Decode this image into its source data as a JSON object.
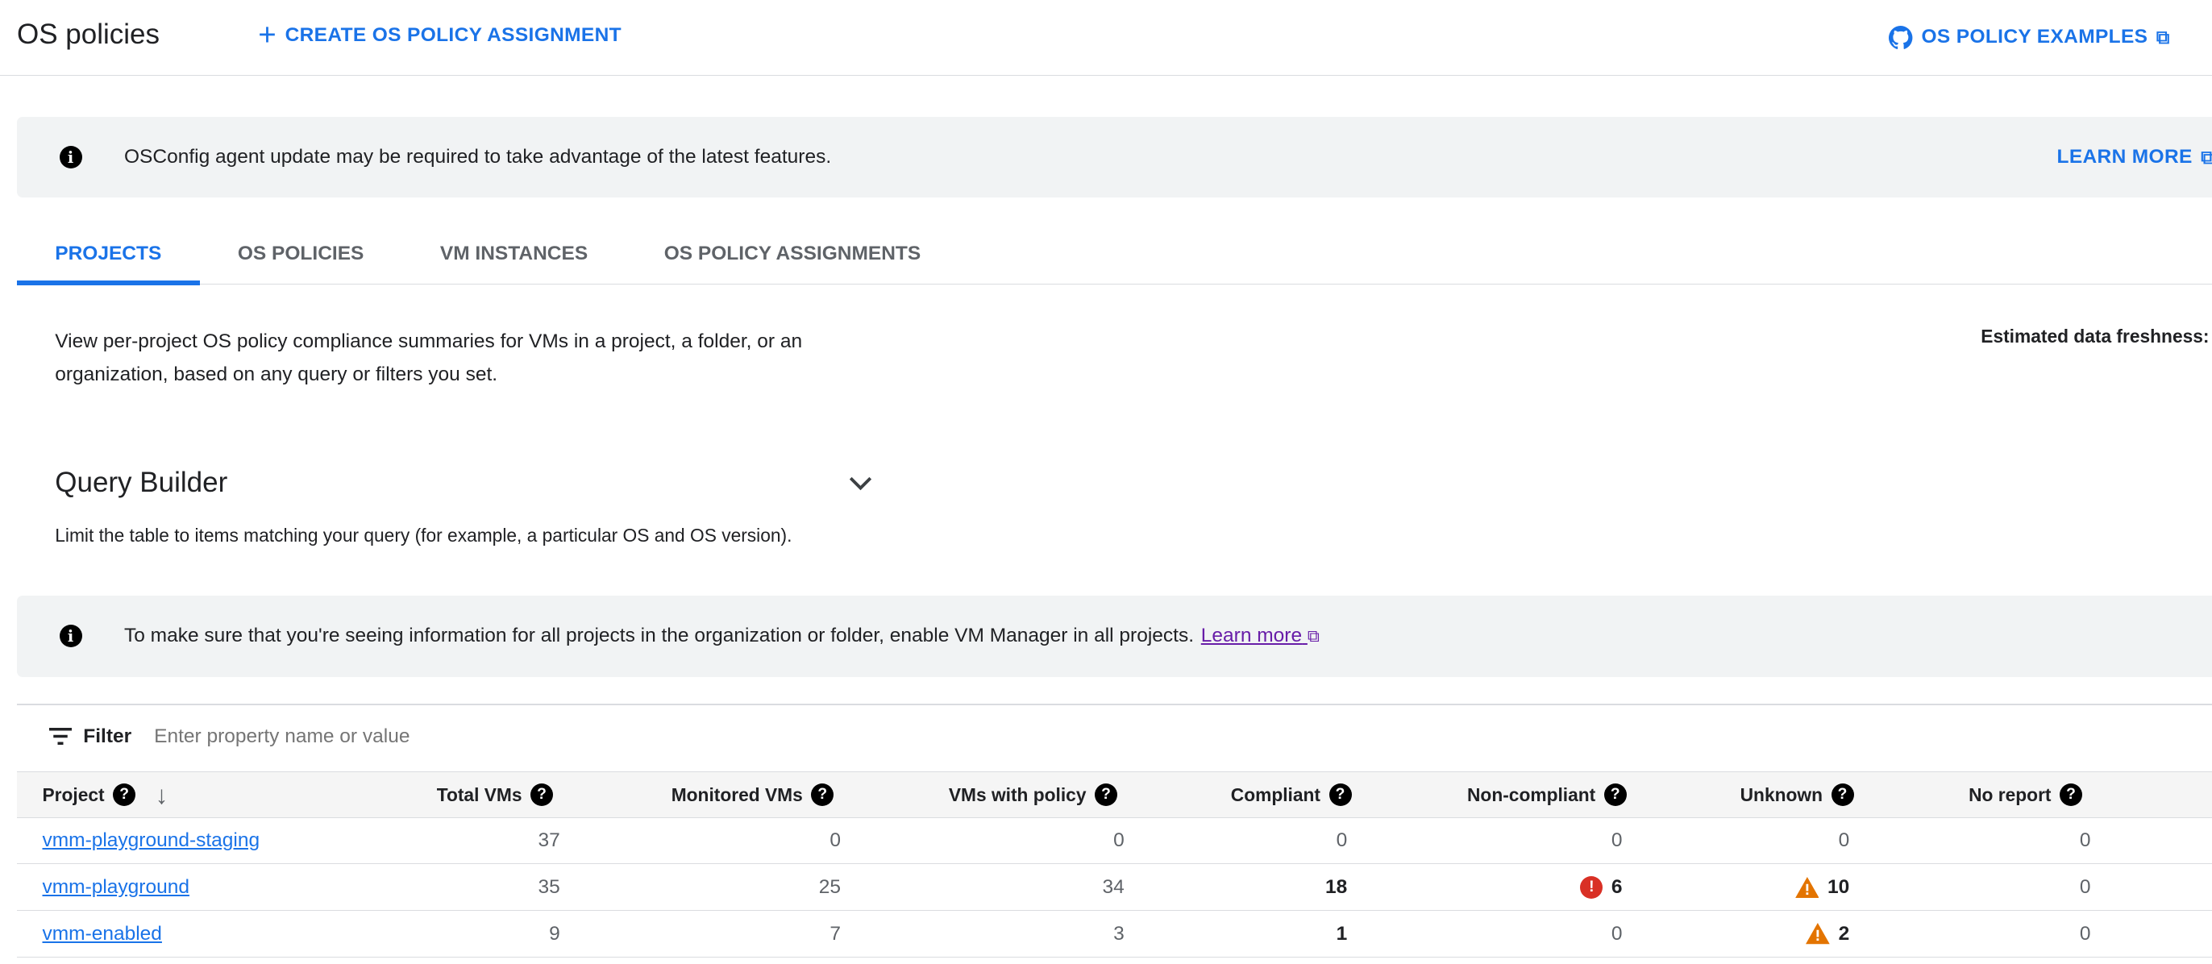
{
  "header": {
    "title": "OS policies",
    "create_label": "CREATE OS POLICY ASSIGNMENT",
    "examples_label": "OS POLICY EXAMPLES"
  },
  "banner1": {
    "text": "OSConfig agent update may be required to take advantage of the latest features.",
    "learn_more": "LEARN MORE"
  },
  "tabs": [
    {
      "label": "PROJECTS",
      "active": true
    },
    {
      "label": "OS POLICIES"
    },
    {
      "label": "VM INSTANCES"
    },
    {
      "label": "OS POLICY ASSIGNMENTS"
    }
  ],
  "description": "View per-project OS policy compliance summaries for VMs in a project, a folder, or an organization, based on any query or filters you set.",
  "freshness_label": "Estimated data freshness:",
  "query_builder": {
    "title": "Query Builder",
    "subtitle": "Limit the table to items matching your query (for example, a particular OS and OS version)."
  },
  "banner2": {
    "text": "To make sure that you're seeing information for all projects in the organization or folder, enable VM Manager in all projects.",
    "link": "Learn more"
  },
  "filter": {
    "label": "Filter",
    "placeholder": "Enter property name or value"
  },
  "table": {
    "columns": [
      "Project",
      "Total VMs",
      "Monitored VMs",
      "VMs with policy",
      "Compliant",
      "Non-compliant",
      "Unknown",
      "No report"
    ],
    "rows": [
      {
        "project": "vmm-playground-staging",
        "total": "37",
        "monitored": "0",
        "with_policy": "0",
        "compliant": "0",
        "non_compliant": "0",
        "unknown": "0",
        "no_report": "0"
      },
      {
        "project": "vmm-playground",
        "total": "35",
        "monitored": "25",
        "with_policy": "34",
        "compliant": "18",
        "non_compliant": "6",
        "unknown": "10",
        "no_report": "0"
      },
      {
        "project": "vmm-enabled",
        "total": "9",
        "monitored": "7",
        "with_policy": "3",
        "compliant": "1",
        "non_compliant": "0",
        "unknown": "2",
        "no_report": "0"
      }
    ]
  },
  "colors": {
    "accent": "#1a73e8",
    "error": "#d93025",
    "warning": "#e37400"
  }
}
